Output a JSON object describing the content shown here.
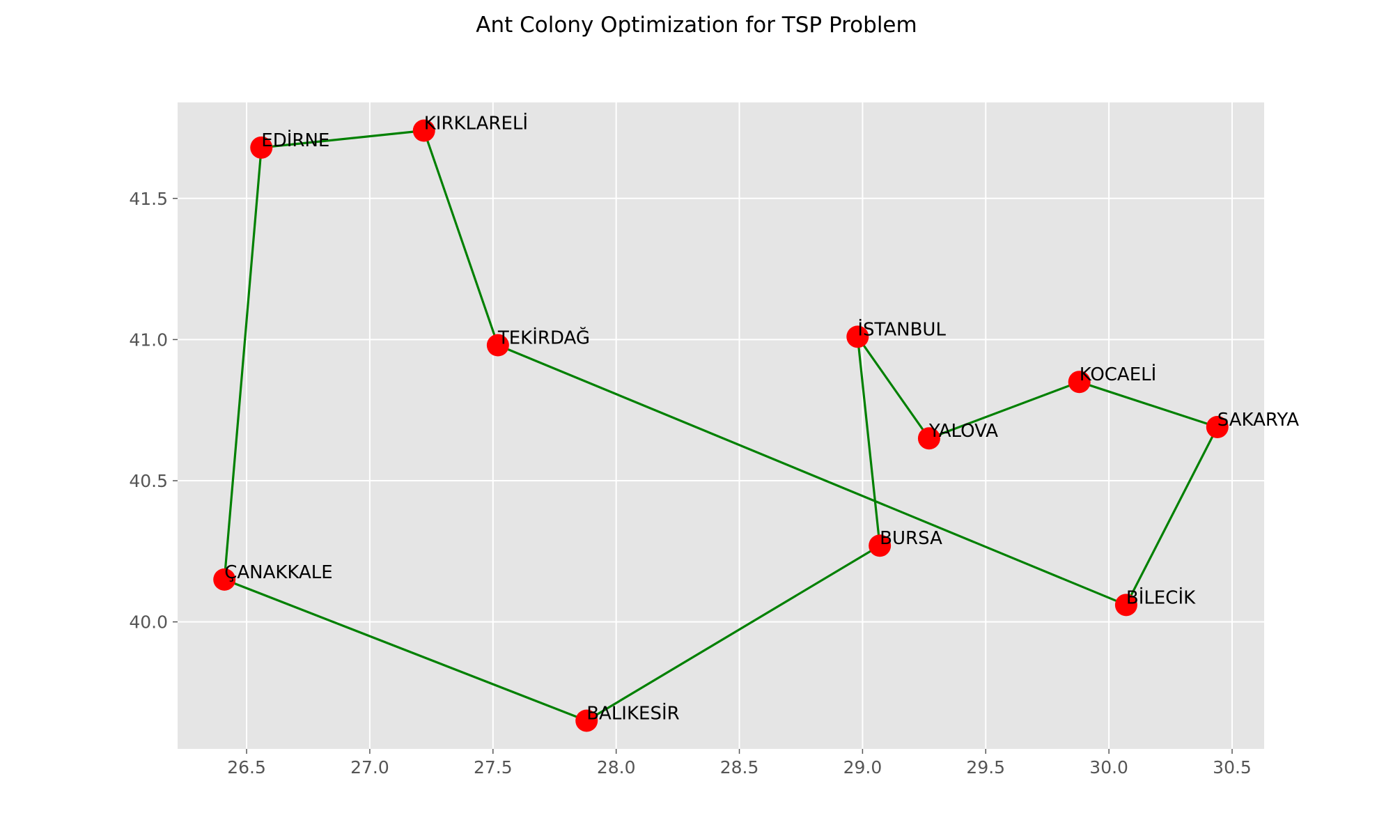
{
  "chart_data": {
    "type": "scatter",
    "title": "Ant Colony Optimization for TSP Problem",
    "xlabel": "",
    "ylabel": "",
    "xlim": [
      26.22,
      30.63
    ],
    "ylim": [
      39.55,
      41.84
    ],
    "xticks": [
      26.5,
      27.0,
      27.5,
      28.0,
      28.5,
      29.0,
      29.5,
      30.0,
      30.5
    ],
    "xtick_labels": [
      "26.5",
      "27.0",
      "27.5",
      "28.0",
      "28.5",
      "29.0",
      "29.5",
      "30.0",
      "30.5"
    ],
    "yticks": [
      40.0,
      40.5,
      41.0,
      41.5
    ],
    "ytick_labels": [
      "40.0",
      "40.5",
      "41.0",
      "41.5"
    ],
    "grid": true,
    "point_color": "#ff0000",
    "route_color": "#008000",
    "background_color": "#e5e5e5",
    "cities": [
      {
        "name": "EDİRNE",
        "x": 26.56,
        "y": 41.68
      },
      {
        "name": "KIRKLARELİ",
        "x": 27.22,
        "y": 41.74
      },
      {
        "name": "TEKİRDAĞ",
        "x": 27.52,
        "y": 40.98
      },
      {
        "name": "İSTANBUL",
        "x": 28.98,
        "y": 41.01
      },
      {
        "name": "KOCAELİ",
        "x": 29.88,
        "y": 40.85
      },
      {
        "name": "YALOVA",
        "x": 29.27,
        "y": 40.65
      },
      {
        "name": "SAKARYA",
        "x": 30.44,
        "y": 40.69
      },
      {
        "name": "BURSA",
        "x": 29.07,
        "y": 40.27
      },
      {
        "name": "ÇANAKKALE",
        "x": 26.41,
        "y": 40.15
      },
      {
        "name": "BİLECİK",
        "x": 30.07,
        "y": 40.06
      },
      {
        "name": "BALIKESİR",
        "x": 27.88,
        "y": 39.65
      }
    ],
    "route": [
      "EDİRNE",
      "KIRKLARELİ",
      "TEKİRDAĞ",
      "BİLECİK",
      "SAKARYA",
      "KOCAELİ",
      "YALOVA",
      "İSTANBUL",
      "BURSA",
      "BALIKESİR",
      "ÇANAKKALE",
      "EDİRNE"
    ]
  }
}
